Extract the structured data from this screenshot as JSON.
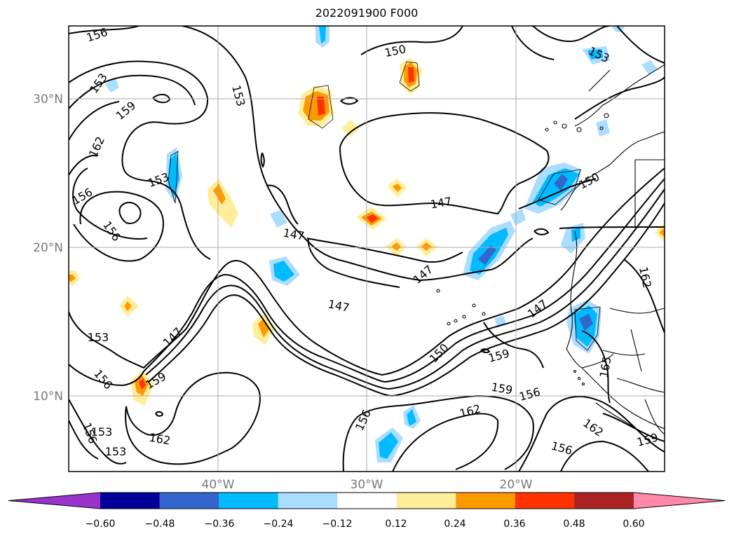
{
  "title": "2022091900 F000",
  "map": {
    "lat_labels": [
      "30°N",
      "20°N",
      "10°N"
    ],
    "lon_labels": [
      "40°W",
      "30°W",
      "20°W"
    ]
  },
  "contour_labels": [
    {
      "text": "156"
    },
    {
      "text": "153"
    },
    {
      "text": "159"
    },
    {
      "text": "162"
    },
    {
      "text": "153"
    },
    {
      "text": "156"
    },
    {
      "text": "156"
    },
    {
      "text": "153"
    },
    {
      "text": "150"
    },
    {
      "text": "153"
    },
    {
      "text": "147"
    },
    {
      "text": "147"
    },
    {
      "text": "147"
    },
    {
      "text": "147"
    },
    {
      "text": "150"
    },
    {
      "text": "147"
    },
    {
      "text": "162"
    },
    {
      "text": "153"
    },
    {
      "text": "147"
    },
    {
      "text": "156"
    },
    {
      "text": "159"
    },
    {
      "text": "150"
    },
    {
      "text": "159"
    },
    {
      "text": "159"
    },
    {
      "text": "156"
    },
    {
      "text": "165"
    },
    {
      "text": "156"
    },
    {
      "text": "153"
    },
    {
      "text": "156"
    },
    {
      "text": "153"
    },
    {
      "text": "162"
    },
    {
      "text": "156"
    },
    {
      "text": "162"
    },
    {
      "text": "162"
    },
    {
      "text": "156"
    },
    {
      "text": "159"
    }
  ],
  "colorbar": {
    "labels": [
      "−0.60",
      "−0.48",
      "−0.36",
      "−0.24",
      "−0.12",
      "0.12",
      "0.24",
      "0.36",
      "0.48",
      "0.60"
    ],
    "colors": [
      "#9933cc",
      "#000099",
      "#3366cc",
      "#00bbff",
      "#aaddff",
      "#ffffff",
      "#ffee99",
      "#ff9900",
      "#ff3300",
      "#aa2222",
      "#ff88aa"
    ]
  }
}
